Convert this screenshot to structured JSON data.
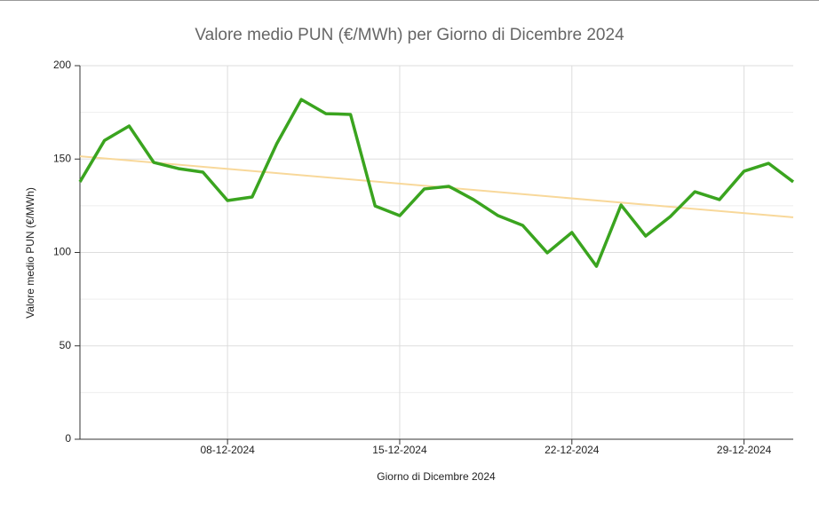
{
  "chart_data": {
    "type": "line",
    "title": "Valore medio PUN (€/MWh) per Giorno di Dicembre 2024",
    "x_label": "Giorno di Dicembre 2024",
    "y_label": "Valore medio PUN (€/MWh)",
    "x": [
      "2024-12-02",
      "2024-12-03",
      "2024-12-04",
      "2024-12-05",
      "2024-12-06",
      "2024-12-07",
      "2024-12-08",
      "2024-12-09",
      "2024-12-10",
      "2024-12-11",
      "2024-12-12",
      "2024-12-13",
      "2024-12-14",
      "2024-12-15",
      "2024-12-16",
      "2024-12-17",
      "2024-12-18",
      "2024-12-19",
      "2024-12-20",
      "2024-12-21",
      "2024-12-22",
      "2024-12-23",
      "2024-12-24",
      "2024-12-25",
      "2024-12-26",
      "2024-12-27",
      "2024-12-28",
      "2024-12-29",
      "2024-12-30",
      "2024-12-31"
    ],
    "series": [
      {
        "color": "#3aa41f",
        "values": [
          137.8,
          160,
          167.7,
          148.2,
          144.9,
          143,
          127.8,
          129.7,
          158.2,
          181.9,
          174.3,
          173.9,
          124.9,
          119.7,
          134,
          135.4,
          128.3,
          119.7,
          114.5,
          99.8,
          110.7,
          92.6,
          125.4,
          108.8,
          119.2,
          132.5,
          128.3,
          143.5,
          147.7,
          137.8
        ]
      }
    ],
    "trend": {
      "color": "#f8d89a",
      "x": [
        "2024-12-02",
        "2024-12-31"
      ],
      "values": [
        151.5,
        118.8
      ]
    },
    "xlim": [
      "2024-12-02",
      "2024-12-31"
    ],
    "xticks": [
      {
        "value": "2024-12-08",
        "label": "08-12-2024"
      },
      {
        "value": "2024-12-15",
        "label": "15-12-2024"
      },
      {
        "value": "2024-12-22",
        "label": "22-12-2024"
      },
      {
        "value": "2024-12-29",
        "label": "29-12-2024"
      }
    ],
    "ylim": [
      0,
      200
    ],
    "yticks": [
      0,
      50,
      100,
      150,
      200
    ],
    "yminor": [
      25,
      75,
      125,
      175
    ],
    "grid": true
  }
}
